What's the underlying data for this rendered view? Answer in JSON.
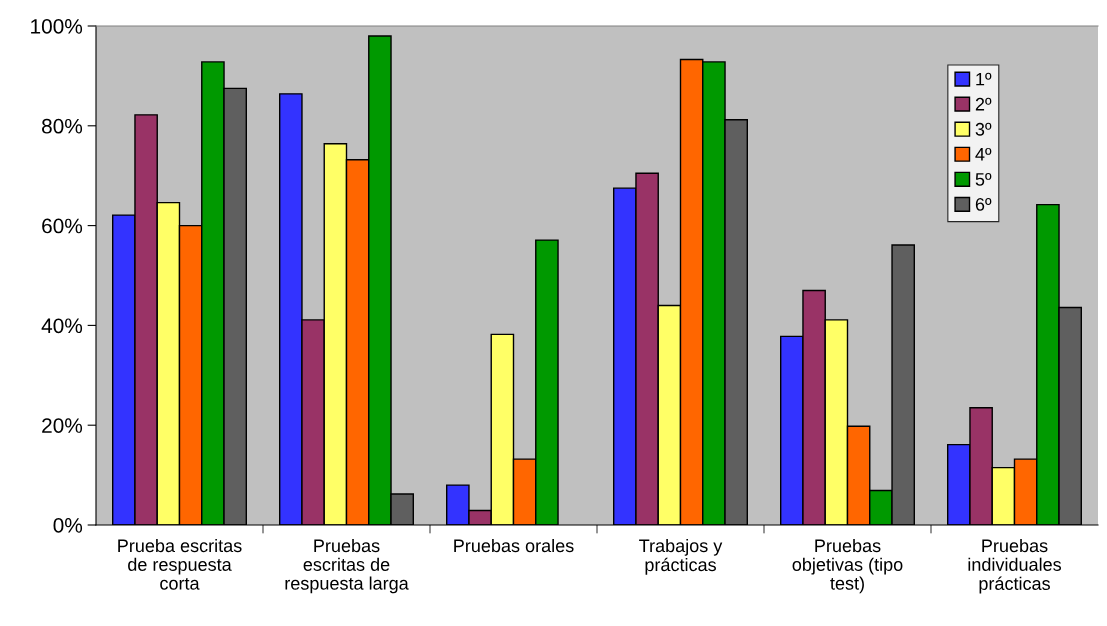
{
  "chart_data": {
    "type": "bar",
    "categories": [
      "Prueba escritas\nde respuesta\ncorta",
      "Pruebas\nescritas de\nrespuesta larga",
      "Pruebas orales",
      "Trabajos y\nprácticas",
      "Pruebas\nobjetivas (tipo\ntest)",
      "Pruebas\nindividuales\nprácticas"
    ],
    "series": [
      {
        "name": "1º",
        "color": "#3333ff",
        "values": [
          62.1,
          86.4,
          8.0,
          67.5,
          37.8,
          16.1
        ]
      },
      {
        "name": "2º",
        "color": "#993366",
        "values": [
          82.2,
          41.1,
          2.9,
          70.5,
          47.0,
          23.5
        ]
      },
      {
        "name": "3º",
        "color": "#ffff66",
        "values": [
          64.6,
          76.4,
          38.2,
          44.0,
          41.1,
          11.5
        ]
      },
      {
        "name": "4º",
        "color": "#ff6600",
        "values": [
          60.0,
          73.2,
          13.2,
          93.3,
          19.8,
          13.2
        ]
      },
      {
        "name": "5º",
        "color": "#009900",
        "values": [
          92.8,
          98.0,
          57.1,
          92.8,
          6.9,
          64.2
        ]
      },
      {
        "name": "6º",
        "color": "#5f5f5f",
        "values": [
          87.5,
          6.2,
          null,
          81.2,
          56.1,
          43.6
        ]
      }
    ],
    "ylim": [
      0,
      100
    ],
    "yticks": [
      {
        "value": 0,
        "label": "0%"
      },
      {
        "value": 20,
        "label": "20%"
      },
      {
        "value": 40,
        "label": "40%"
      },
      {
        "value": 60,
        "label": "60%"
      },
      {
        "value": 80,
        "label": "80%"
      },
      {
        "value": 100,
        "label": "100%"
      }
    ],
    "grid": false,
    "legend": "top right"
  }
}
